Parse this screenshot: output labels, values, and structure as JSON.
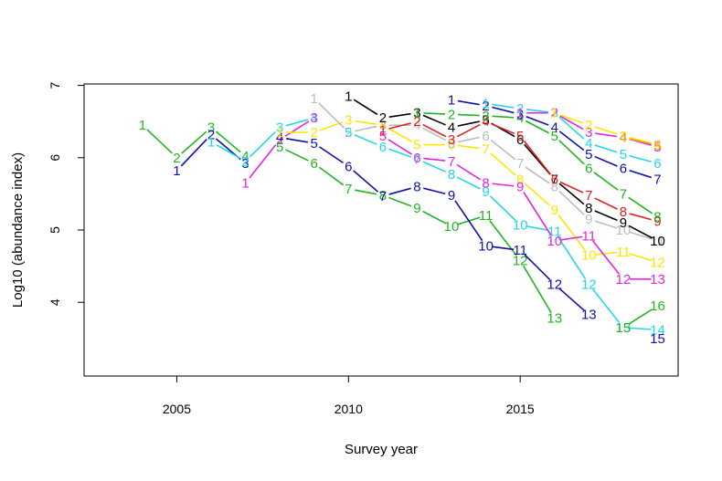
{
  "chart_data": {
    "type": "line",
    "title": "",
    "xlabel": "Survey year",
    "ylabel": "Log10 (abundance index)",
    "xlim": [
      2002.3,
      2019.6
    ],
    "ylim": [
      2.98,
      7.02
    ],
    "xticks": [
      "2005",
      "2010",
      "2015"
    ],
    "yticks": [
      "4",
      "5",
      "6",
      "7"
    ],
    "grid": false,
    "legend": "none",
    "series": [
      {
        "color": "#22b522",
        "points": [
          [
            2004,
            6.45,
            "1"
          ],
          [
            2005,
            6.0,
            "2"
          ],
          [
            2006,
            6.42,
            "3"
          ],
          [
            2007,
            6.02,
            "4"
          ]
        ]
      },
      {
        "color": "#1111aa",
        "points": [
          [
            2005,
            5.82,
            "1"
          ],
          [
            2006,
            6.32,
            "2"
          ],
          [
            2007,
            5.92,
            "3"
          ]
        ]
      },
      {
        "color": "#22d8e6",
        "points": [
          [
            2006,
            6.22,
            "1"
          ],
          [
            2007,
            5.95,
            "2"
          ],
          [
            2008,
            6.42,
            "3"
          ],
          [
            2009,
            6.55,
            "4"
          ]
        ]
      },
      {
        "color": "#e225e2",
        "points": [
          [
            2007,
            5.65,
            "1"
          ],
          [
            2008,
            6.25,
            "2"
          ],
          [
            2009,
            6.55,
            "3"
          ]
        ]
      },
      {
        "color": "#22b522",
        "points": [
          [
            2008,
            6.15,
            "5"
          ],
          [
            2009,
            5.92,
            "6"
          ],
          [
            2010,
            5.57,
            "7"
          ],
          [
            2011,
            5.48,
            "8"
          ],
          [
            2012,
            5.3,
            "9"
          ],
          [
            2013,
            5.05,
            "10"
          ],
          [
            2014,
            5.2,
            "11"
          ],
          [
            2015,
            4.58,
            "12"
          ],
          [
            2016,
            3.78,
            "13"
          ]
        ]
      },
      {
        "color": "#1111aa",
        "points": [
          [
            2008,
            6.28,
            "4"
          ],
          [
            2009,
            6.2,
            "5"
          ],
          [
            2010,
            5.88,
            "6"
          ],
          [
            2011,
            5.47,
            "7"
          ],
          [
            2012,
            5.6,
            "8"
          ],
          [
            2013,
            5.48,
            "9"
          ],
          [
            2014,
            4.78,
            "10"
          ],
          [
            2015,
            4.72,
            "11"
          ],
          [
            2016,
            4.25,
            "12"
          ],
          [
            2017,
            3.83,
            "13"
          ]
        ]
      },
      {
        "color": "#ffe400",
        "points": [
          [
            2008,
            6.35,
            "1"
          ],
          [
            2009,
            6.35,
            "2"
          ],
          [
            2010,
            6.52,
            "3"
          ],
          [
            2011,
            6.45,
            "4"
          ],
          [
            2012,
            6.18,
            "5"
          ],
          [
            2013,
            6.18,
            "6"
          ],
          [
            2014,
            6.12,
            "7"
          ],
          [
            2015,
            5.7,
            "8"
          ],
          [
            2016,
            5.28,
            "9"
          ],
          [
            2017,
            4.65,
            "10"
          ],
          [
            2018,
            4.7,
            "11"
          ],
          [
            2019,
            4.55,
            "12"
          ]
        ]
      },
      {
        "color": "#bdbdbd",
        "points": [
          [
            2009,
            6.82,
            "1"
          ],
          [
            2010,
            6.35,
            "2"
          ],
          [
            2011,
            6.45,
            "3"
          ],
          [
            2012,
            6.45,
            "4"
          ],
          [
            2013,
            6.2,
            "5"
          ],
          [
            2014,
            6.3,
            "6"
          ],
          [
            2015,
            5.92,
            "7"
          ],
          [
            2016,
            5.6,
            "8"
          ],
          [
            2017,
            5.15,
            "9"
          ],
          [
            2018,
            5.0,
            "10"
          ],
          [
            2019,
            4.85,
            "11"
          ]
        ]
      },
      {
        "color": "#22d8e6",
        "points": [
          [
            2010,
            6.35,
            "5"
          ],
          [
            2011,
            6.15,
            "6"
          ],
          [
            2012,
            5.98,
            "7"
          ],
          [
            2013,
            5.77,
            "8"
          ],
          [
            2014,
            5.53,
            "9"
          ],
          [
            2015,
            5.07,
            "10"
          ],
          [
            2016,
            4.98,
            "11"
          ],
          [
            2017,
            4.25,
            "12"
          ],
          [
            2018,
            3.65,
            "13"
          ],
          [
            2019,
            3.62,
            "14"
          ]
        ]
      },
      {
        "color": "#000000",
        "points": [
          [
            2010,
            6.85,
            "1"
          ],
          [
            2011,
            6.55,
            "2"
          ],
          [
            2012,
            6.62,
            "3"
          ],
          [
            2013,
            6.42,
            "4"
          ],
          [
            2014,
            6.52,
            "5"
          ],
          [
            2015,
            6.25,
            "6"
          ],
          [
            2016,
            5.7,
            "7"
          ],
          [
            2017,
            5.3,
            "8"
          ],
          [
            2018,
            5.1,
            "9"
          ],
          [
            2019,
            4.85,
            "10"
          ]
        ]
      },
      {
        "color": "#e225e2",
        "points": [
          [
            2011,
            6.3,
            "5"
          ],
          [
            2012,
            6.0,
            "6"
          ],
          [
            2013,
            5.95,
            "7"
          ],
          [
            2014,
            5.65,
            "8"
          ],
          [
            2015,
            5.6,
            "9"
          ],
          [
            2016,
            4.85,
            "10"
          ],
          [
            2017,
            4.92,
            "11"
          ],
          [
            2018,
            4.32,
            "12"
          ],
          [
            2019,
            4.32,
            "13"
          ]
        ]
      },
      {
        "color": "#e01f1f",
        "points": [
          [
            2011,
            6.38,
            "1"
          ],
          [
            2012,
            6.5,
            "2"
          ],
          [
            2013,
            6.25,
            "3"
          ],
          [
            2014,
            6.5,
            "4"
          ],
          [
            2015,
            6.3,
            "5"
          ],
          [
            2016,
            5.7,
            "6"
          ],
          [
            2017,
            5.48,
            "7"
          ],
          [
            2018,
            5.25,
            "8"
          ],
          [
            2019,
            5.12,
            "9"
          ]
        ]
      },
      {
        "color": "#22b522",
        "points": [
          [
            2012,
            6.62,
            "1"
          ],
          [
            2013,
            6.6,
            "2"
          ],
          [
            2014,
            6.58,
            "3"
          ],
          [
            2015,
            6.55,
            "4"
          ],
          [
            2016,
            6.3,
            "5"
          ],
          [
            2017,
            5.85,
            "6"
          ],
          [
            2018,
            5.5,
            "7"
          ],
          [
            2019,
            5.18,
            "8"
          ]
        ]
      },
      {
        "color": "#22b522",
        "points": [
          [
            2018,
            3.65,
            "15"
          ],
          [
            2019,
            3.95,
            "16"
          ]
        ]
      },
      {
        "color": "#1111aa",
        "points": [
          [
            2013,
            6.8,
            "1"
          ],
          [
            2014,
            6.72,
            "2"
          ],
          [
            2015,
            6.6,
            "3"
          ],
          [
            2016,
            6.42,
            "4"
          ],
          [
            2017,
            6.05,
            "5"
          ],
          [
            2018,
            5.85,
            "6"
          ],
          [
            2019,
            5.7,
            "7"
          ]
        ]
      },
      {
        "color": "#1111aa",
        "points": [
          [
            2019,
            3.5,
            "15"
          ]
        ]
      },
      {
        "color": "#22d8e6",
        "points": [
          [
            2014,
            6.75,
            "1"
          ],
          [
            2015,
            6.68,
            "2"
          ],
          [
            2016,
            6.62,
            "3"
          ],
          [
            2017,
            6.2,
            "4"
          ],
          [
            2018,
            6.05,
            "5"
          ],
          [
            2019,
            5.92,
            "6"
          ]
        ]
      },
      {
        "color": "#e225e2",
        "points": [
          [
            2015,
            6.62,
            "1"
          ],
          [
            2016,
            6.62,
            "2"
          ],
          [
            2017,
            6.35,
            "3"
          ],
          [
            2018,
            6.28,
            "4"
          ],
          [
            2019,
            6.15,
            "5"
          ]
        ]
      },
      {
        "color": "#ffe400",
        "points": [
          [
            2016,
            6.62,
            "1"
          ],
          [
            2017,
            6.45,
            "2"
          ],
          [
            2018,
            6.3,
            "3"
          ],
          [
            2019,
            6.18,
            "4"
          ]
        ]
      },
      {
        "color": "#f29a1f",
        "points": [
          [
            2018,
            6.28,
            "4"
          ],
          [
            2019,
            6.17,
            "5"
          ]
        ]
      }
    ]
  }
}
